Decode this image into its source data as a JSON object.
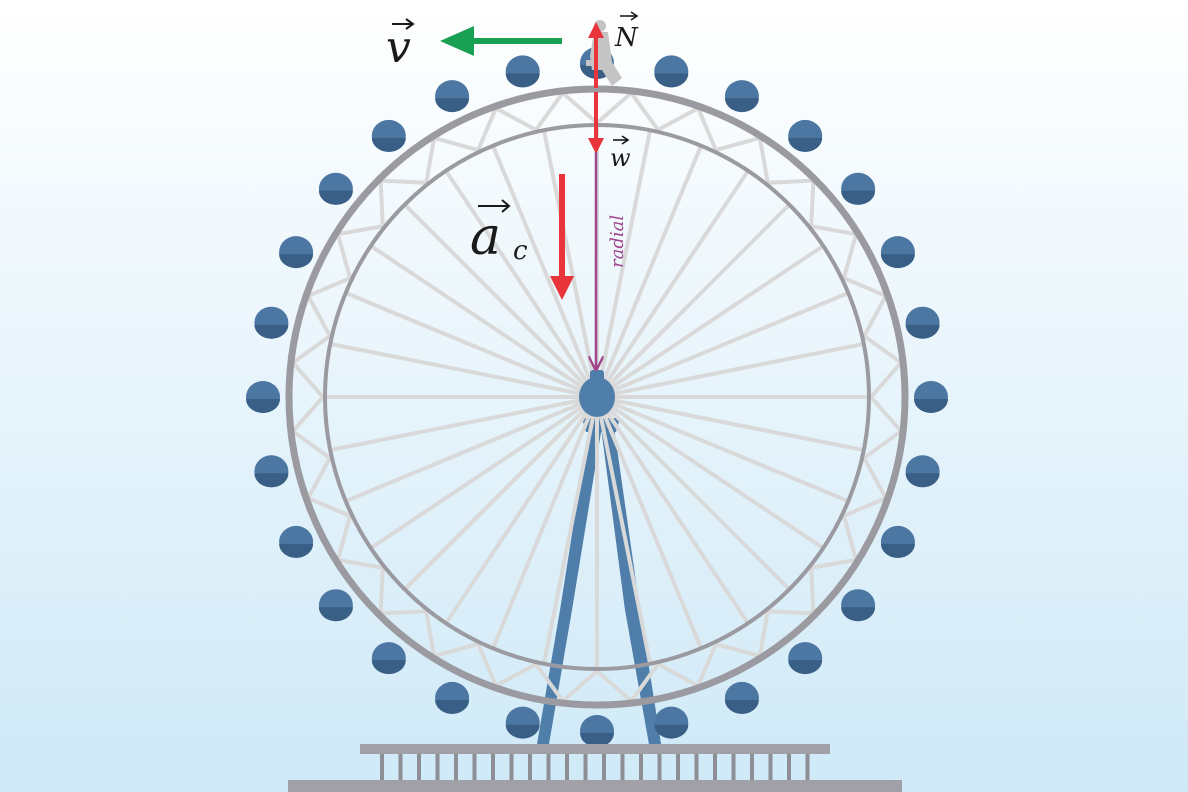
{
  "labels": {
    "velocity": "v",
    "normal_force": "N",
    "weight": "w",
    "centripetal_accel_main": "a",
    "centripetal_accel_sub": "c",
    "radial": "radial"
  },
  "colors": {
    "sky_top": "#ffffff",
    "sky_bottom": "#cfe9f7",
    "rim": "#9a9aa0",
    "spokes": "#d9d9d9",
    "cabin": "#4c77a3",
    "cabin_shadow": "#3a5f86",
    "support": "#4f7eab",
    "base": "#a0a0a6",
    "velocity_arrow": "#1aa052",
    "force_arrow": "#e8343a",
    "radial_line": "#a0468c",
    "label_text": "#1a1a1a"
  },
  "wheel": {
    "cabin_count": 28,
    "spoke_count": 32
  }
}
